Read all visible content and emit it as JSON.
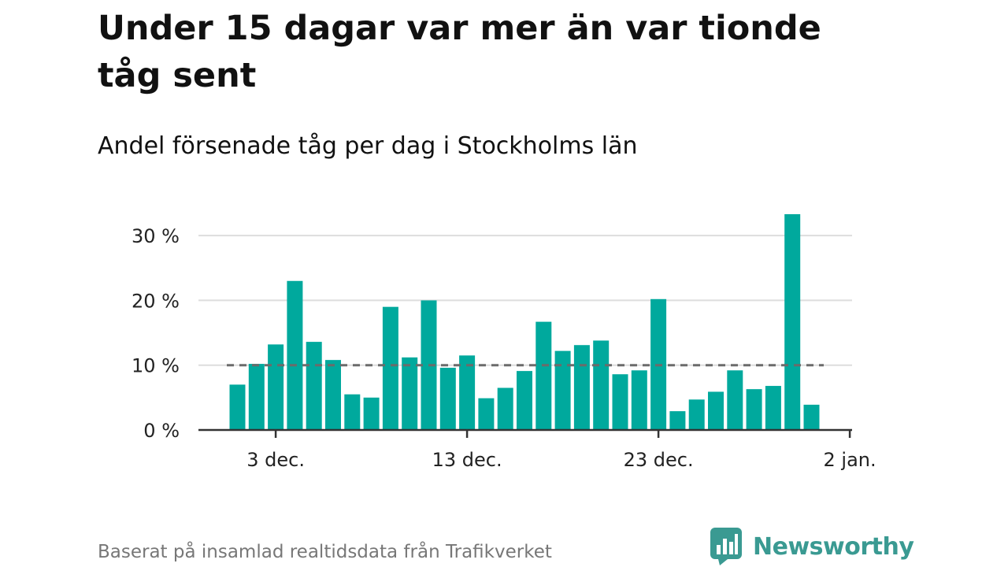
{
  "header": {
    "title": "Under 15 dagar var mer än var tionde tåg sent",
    "subtitle": "Andel försenade tåg per dag i Stockholms län"
  },
  "footer": {
    "source": "Baserat på insamlad realtidsdata från Trafikverket",
    "brand": "Newsworthy",
    "logo_icon": "bar-chart-logo-icon"
  },
  "colors": {
    "bar": "#00A99D",
    "reference_line": "#6b6b6b",
    "grid": "#dddddd",
    "axis": "#333333",
    "brand": "#3a9a92"
  },
  "chart_data": {
    "type": "bar",
    "categories": [
      "1 dec.",
      "2 dec.",
      "3 dec.",
      "4 dec.",
      "5 dec.",
      "6 dec.",
      "7 dec.",
      "8 dec.",
      "9 dec.",
      "10 dec.",
      "11 dec.",
      "12 dec.",
      "13 dec.",
      "14 dec.",
      "15 dec.",
      "16 dec.",
      "17 dec.",
      "18 dec.",
      "19 dec.",
      "20 dec.",
      "21 dec.",
      "22 dec.",
      "23 dec.",
      "24 dec.",
      "25 dec.",
      "26 dec.",
      "27 dec.",
      "28 dec.",
      "29 dec.",
      "30 dec.",
      "31 dec."
    ],
    "values": [
      7,
      10.2,
      13.2,
      23,
      13.6,
      10.8,
      5.5,
      5,
      19,
      11.2,
      20,
      9.6,
      11.5,
      4.9,
      6.5,
      9.1,
      16.7,
      12.2,
      13.1,
      13.8,
      8.6,
      9.2,
      20.2,
      2.9,
      4.7,
      5.9,
      9.2,
      6.3,
      6.8,
      33.3,
      3.9
    ],
    "ylim": [
      0,
      33.3
    ],
    "yticks": [
      0,
      10,
      20,
      30
    ],
    "ytick_labels": [
      "0 %",
      "10 %",
      "20 %",
      "30 %"
    ],
    "xticks": [
      "3 dec.",
      "13 dec.",
      "23 dec.",
      "2 jan."
    ],
    "xtick_positions": [
      2,
      12,
      22,
      32
    ],
    "reference_line": 10,
    "grid": true
  }
}
